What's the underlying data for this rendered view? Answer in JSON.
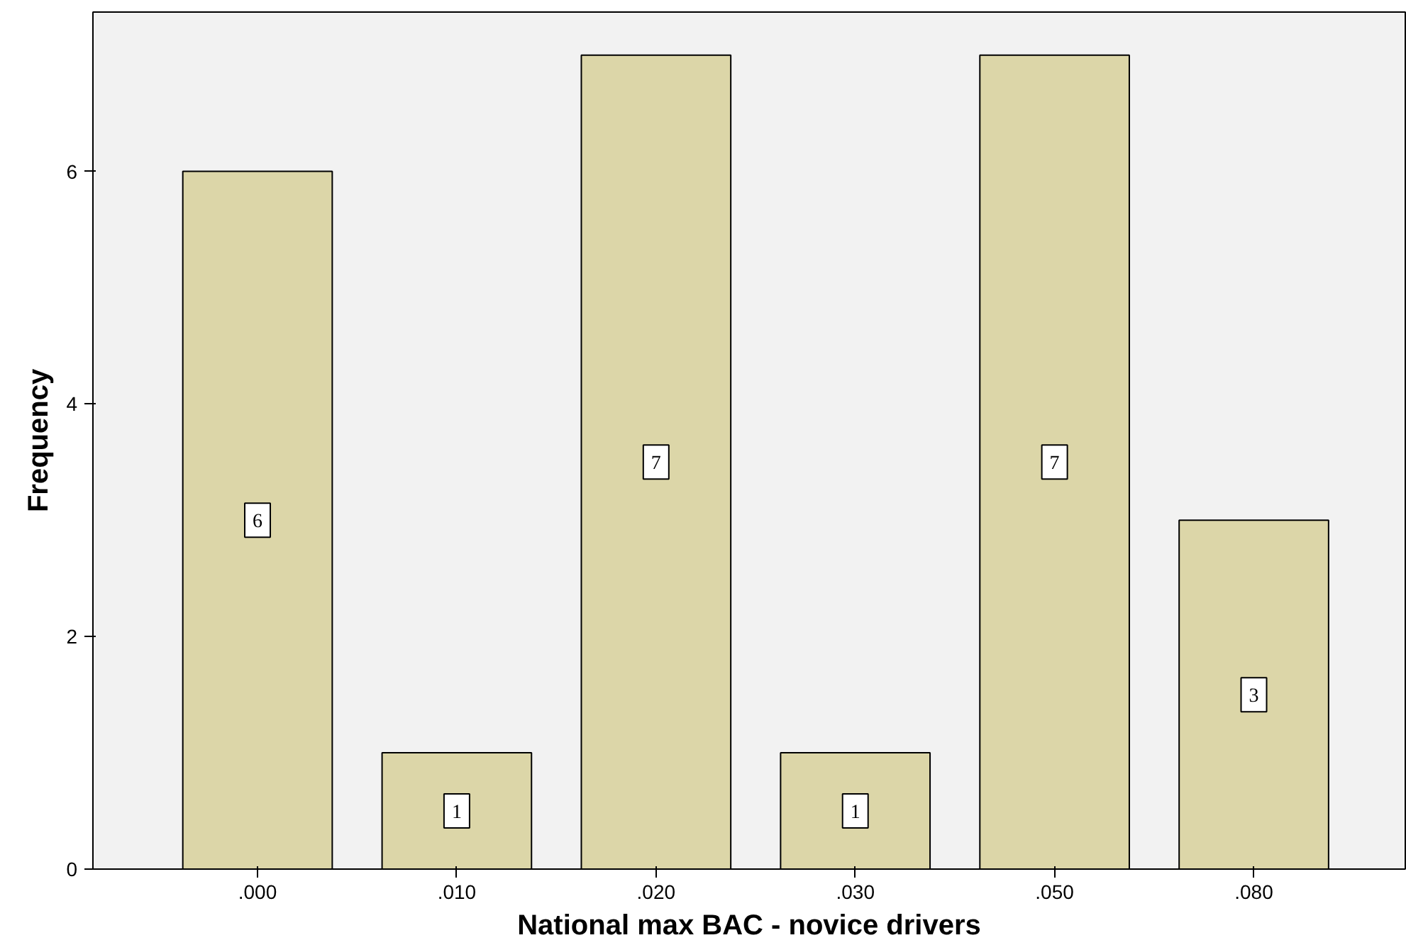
{
  "chart_data": {
    "type": "bar",
    "xlabel": "National max BAC - novice drivers",
    "ylabel": "Frequency",
    "categories": [
      ".000",
      ".010",
      ".020",
      ".030",
      ".050",
      ".080"
    ],
    "values": [
      6,
      1,
      7,
      1,
      7,
      3
    ],
    "color": "#dcd6a8",
    "ylim": [
      0,
      7.37
    ],
    "yticks": [
      0,
      2,
      4,
      6
    ],
    "grid": false,
    "data_labels": true
  }
}
